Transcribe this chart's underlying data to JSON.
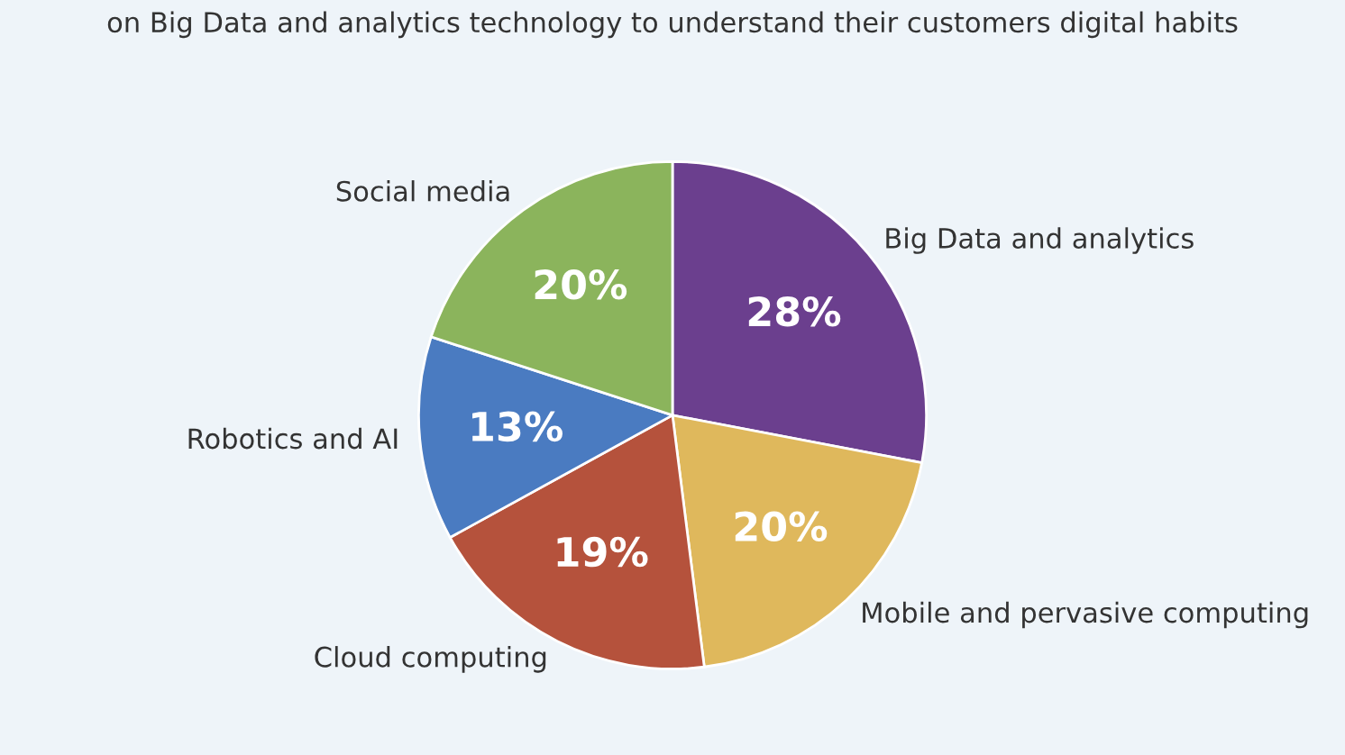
{
  "chart_data": {
    "type": "pie",
    "title": "on Big Data and analytics technology to understand their customers digital habits",
    "categories": [
      "Big Data and analytics",
      "Mobile and pervasive computing",
      "Cloud computing",
      "Robotics and AI",
      "Social media"
    ],
    "values": [
      28,
      20,
      19,
      13,
      20
    ],
    "value_labels": [
      "28%",
      "20%",
      "19%",
      "13%",
      "20%"
    ],
    "colors": [
      "#6b3f8e",
      "#dfb85c",
      "#b5523c",
      "#4a7bc1",
      "#8bb45c"
    ]
  }
}
